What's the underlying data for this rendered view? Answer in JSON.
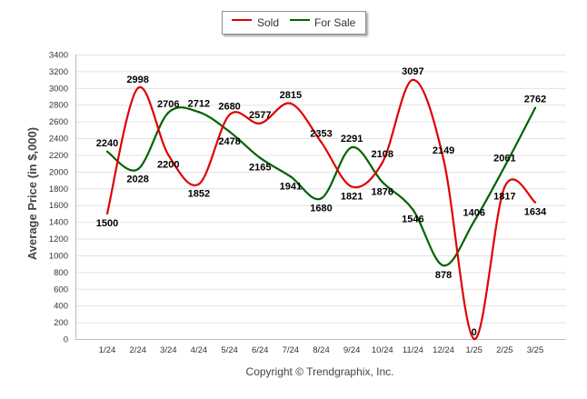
{
  "chart_data": {
    "type": "line",
    "categories": [
      "1/24",
      "2/24",
      "3/24",
      "4/24",
      "5/24",
      "6/24",
      "7/24",
      "8/24",
      "9/24",
      "10/24",
      "11/24",
      "12/24",
      "1/25",
      "2/25",
      "3/25"
    ],
    "series": [
      {
        "name": "Sold",
        "color": "#e00000",
        "values": [
          1500,
          2998,
          2200,
          1852,
          2680,
          2577,
          2815,
          2353,
          1821,
          2108,
          3097,
          2149,
          0,
          1817,
          1634
        ]
      },
      {
        "name": "For Sale",
        "color": "#006400",
        "values": [
          2240,
          2028,
          2706,
          2712,
          2478,
          2165,
          1941,
          1680,
          2291,
          1876,
          1546,
          878,
          1406,
          2061,
          2762
        ]
      }
    ],
    "ylabel": "Average Price (in $,000)",
    "xlabel": "",
    "ylim": [
      0,
      3400
    ],
    "yticks": [
      0,
      200,
      400,
      600,
      800,
      1000,
      1200,
      1400,
      1600,
      1800,
      2000,
      2200,
      2400,
      2600,
      2800,
      3000,
      3200,
      3400
    ],
    "grid": true,
    "legend_position": "top-center",
    "curve": "smooth"
  },
  "footer": {
    "copyright": "Copyright © Trendgraphix, Inc."
  }
}
